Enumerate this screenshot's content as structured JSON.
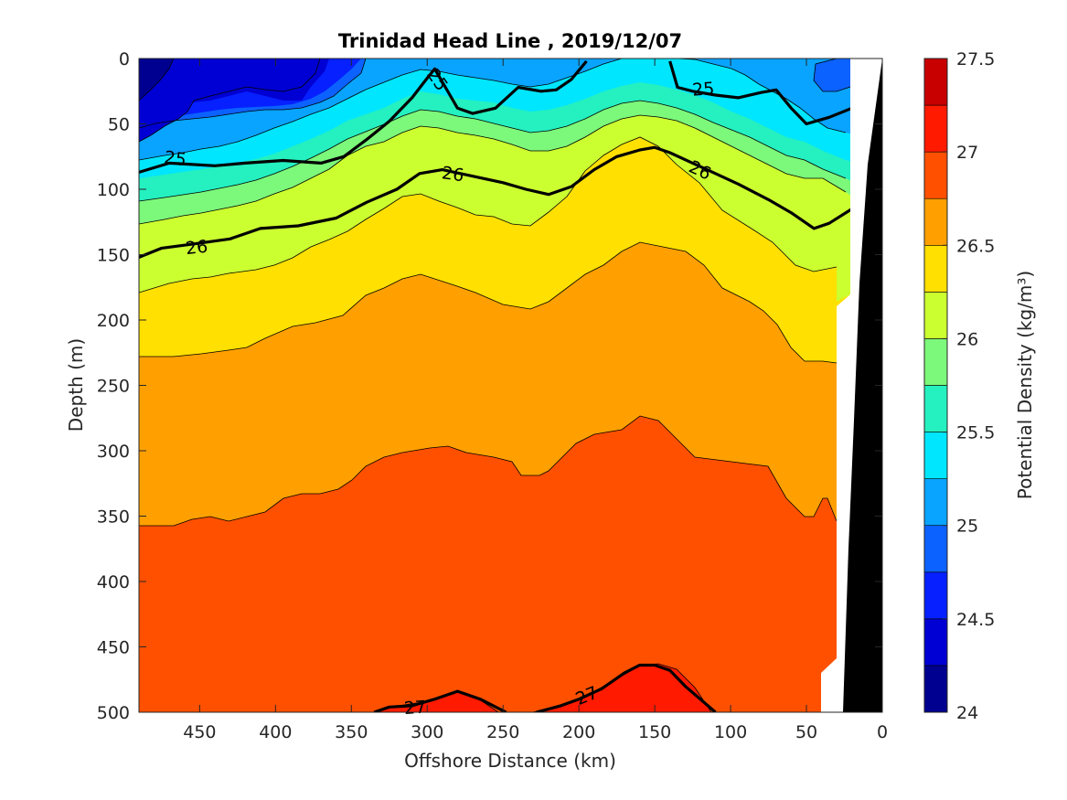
{
  "chart_data": {
    "type": "heatmap",
    "subtype": "filled-contour",
    "title": "Trinidad Head Line , 2019/12/07",
    "xlabel": "Offshore Distance (km)",
    "ylabel": "Depth (m)",
    "xlim": [
      0,
      490
    ],
    "x_reversed": true,
    "ylim": [
      0,
      500
    ],
    "y_reversed": true,
    "x_ticks": [
      450,
      400,
      350,
      300,
      250,
      200,
      150,
      100,
      50,
      0
    ],
    "y_ticks": [
      0,
      50,
      100,
      150,
      200,
      250,
      300,
      350,
      400,
      450,
      500
    ],
    "colorbar": {
      "label": "Potential Density (kg/m³)",
      "range": [
        24,
        27.5
      ],
      "ticks": [
        24,
        24.5,
        25,
        25.5,
        26,
        26.5,
        27,
        27.5
      ],
      "levels": [
        24,
        24.25,
        24.5,
        24.75,
        25,
        25.25,
        25.5,
        25.75,
        26,
        26.25,
        26.5,
        26.75,
        27,
        27.25,
        27.5
      ],
      "colors": [
        "#000090",
        "#0000d4",
        "#0620ff",
        "#0c62ff",
        "#09a4ff",
        "#00e6ff",
        "#24f0c0",
        "#7cf87a",
        "#ccff30",
        "#ffe000",
        "#ffa000",
        "#ff5000",
        "#ff1a00",
        "#c80000"
      ]
    },
    "labeled_contours": [
      {
        "level": 25,
        "depth_profile": [
          [
            490,
            87
          ],
          [
            470,
            80
          ],
          [
            440,
            82
          ],
          [
            420,
            80
          ],
          [
            395,
            78
          ],
          [
            370,
            80
          ],
          [
            355,
            75
          ],
          [
            340,
            62
          ],
          [
            325,
            48
          ],
          [
            310,
            30
          ],
          [
            300,
            15
          ],
          [
            295,
            8
          ],
          [
            288,
            22
          ],
          [
            280,
            38
          ],
          [
            270,
            42
          ],
          [
            255,
            38
          ],
          [
            240,
            22
          ],
          [
            225,
            25
          ],
          [
            215,
            24
          ],
          [
            205,
            16
          ],
          [
            195,
            2
          ]
        ]
      },
      {
        "level": 25,
        "depth_profile": [
          [
            140,
            2
          ],
          [
            135,
            22
          ],
          [
            125,
            25
          ],
          [
            110,
            28
          ],
          [
            95,
            30
          ],
          [
            80,
            26
          ],
          [
            70,
            24
          ],
          [
            60,
            38
          ],
          [
            50,
            50
          ],
          [
            35,
            45
          ],
          [
            20,
            38
          ]
        ]
      },
      {
        "level": 26,
        "depth_profile": [
          [
            490,
            152
          ],
          [
            475,
            145
          ],
          [
            455,
            142
          ],
          [
            430,
            138
          ],
          [
            410,
            130
          ],
          [
            385,
            128
          ],
          [
            360,
            122
          ],
          [
            340,
            110
          ],
          [
            320,
            100
          ],
          [
            305,
            88
          ],
          [
            290,
            85
          ],
          [
            270,
            90
          ],
          [
            250,
            95
          ],
          [
            235,
            100
          ],
          [
            220,
            104
          ],
          [
            205,
            98
          ],
          [
            190,
            85
          ],
          [
            175,
            75
          ],
          [
            160,
            70
          ],
          [
            150,
            68
          ],
          [
            140,
            72
          ],
          [
            125,
            80
          ],
          [
            110,
            88
          ],
          [
            95,
            96
          ],
          [
            75,
            108
          ],
          [
            60,
            118
          ],
          [
            45,
            130
          ],
          [
            35,
            126
          ],
          [
            20,
            115
          ]
        ]
      },
      {
        "level": 27,
        "depth_profile": [
          [
            335,
            500
          ],
          [
            325,
            496
          ],
          [
            310,
            495
          ],
          [
            295,
            490
          ],
          [
            280,
            484
          ],
          [
            265,
            490
          ],
          [
            248,
            500
          ]
        ]
      },
      {
        "level": 27,
        "depth_profile": [
          [
            228,
            500
          ],
          [
            212,
            495
          ],
          [
            200,
            490
          ],
          [
            185,
            482
          ],
          [
            170,
            470
          ],
          [
            160,
            464
          ],
          [
            150,
            464
          ],
          [
            140,
            468
          ],
          [
            130,
            480
          ],
          [
            120,
            490
          ],
          [
            110,
            500
          ]
        ]
      }
    ],
    "contour_labels": [
      {
        "text": "25",
        "x": 466,
        "y": 76,
        "angle": 8
      },
      {
        "text": "25",
        "x": 293,
        "y": 16,
        "angle": 55
      },
      {
        "text": "25",
        "x": 118,
        "y": 23,
        "angle": -4
      },
      {
        "text": "26",
        "x": 452,
        "y": 144,
        "angle": -6
      },
      {
        "text": "26",
        "x": 283,
        "y": 88,
        "angle": 8
      },
      {
        "text": "26",
        "x": 120,
        "y": 85,
        "angle": 25
      },
      {
        "text": "27",
        "x": 308,
        "y": 496,
        "angle": -4
      },
      {
        "text": "27",
        "x": 195,
        "y": 487,
        "angle": -22
      }
    ]
  }
}
